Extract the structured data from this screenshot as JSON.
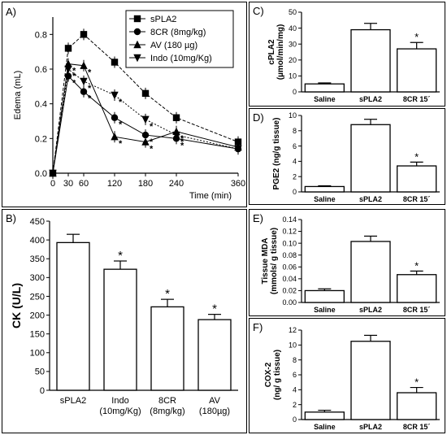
{
  "chart_data": [
    {
      "panel": "A)",
      "type": "line",
      "xlabel": "Time (min)",
      "ylabel": "Edema (mL)",
      "x": [
        0,
        30,
        60,
        120,
        180,
        240,
        360
      ],
      "xlim": [
        0,
        360
      ],
      "ylim": [
        0,
        0.9
      ],
      "xticks": [
        "0",
        "30",
        "60",
        "120",
        "180",
        "240",
        "360"
      ],
      "yticks": [
        "0.0",
        "0.2",
        "0.4",
        "0.6",
        "0.8"
      ],
      "series": [
        {
          "name": "sPLA2",
          "marker": "square",
          "values": [
            0.0,
            0.72,
            0.8,
            0.64,
            0.46,
            0.32,
            0.18
          ],
          "stars": [
            false,
            false,
            false,
            false,
            false,
            false,
            false
          ]
        },
        {
          "name": "8CR (8mg/kg)",
          "marker": "circle",
          "values": [
            0.0,
            0.56,
            0.47,
            0.32,
            0.22,
            0.2,
            0.14
          ],
          "stars": [
            false,
            true,
            true,
            true,
            true,
            true,
            false
          ]
        },
        {
          "name": "AV (180 µg)",
          "marker": "triangle",
          "values": [
            0.0,
            0.63,
            0.62,
            0.21,
            0.18,
            0.24,
            0.15
          ],
          "stars": [
            false,
            true,
            true,
            true,
            true,
            true,
            false
          ]
        },
        {
          "name": "Indo (10mg/Kg)",
          "marker": "invtriangle",
          "values": [
            0.0,
            0.6,
            0.53,
            0.45,
            0.31,
            0.22,
            0.14
          ],
          "stars": [
            false,
            true,
            true,
            true,
            true,
            true,
            false
          ]
        }
      ]
    },
    {
      "panel": "B)",
      "type": "bar",
      "ylabel": "CK (U/L)",
      "categories": [
        [
          "sPLA2"
        ],
        [
          "Indo",
          "(10mg/Kg)"
        ],
        [
          "8CR",
          "(8mg/kg)"
        ],
        [
          "AV",
          "(180µg)"
        ]
      ],
      "values": [
        393,
        322,
        222,
        188
      ],
      "errors": [
        22,
        22,
        20,
        14
      ],
      "stars": [
        false,
        true,
        true,
        true
      ],
      "ylim": [
        0,
        450
      ],
      "yticks": [
        "0",
        "50",
        "100",
        "150",
        "200",
        "250",
        "300",
        "350",
        "400",
        "450"
      ]
    },
    {
      "panel": "C)",
      "type": "bar",
      "ylabel": [
        "cPLA2",
        "(µmol/min/mg)"
      ],
      "categories": [
        "Saline",
        "sPLA2",
        "8CR 15´"
      ],
      "values": [
        5,
        39,
        27
      ],
      "errors": [
        0.6,
        4,
        4
      ],
      "stars": [
        false,
        false,
        true
      ],
      "ylim": [
        0,
        50
      ],
      "yticks": [
        "0",
        "10",
        "20",
        "30",
        "40",
        "50"
      ]
    },
    {
      "panel": "D)",
      "type": "bar",
      "ylabel": "PGE2 (ng/g tissue)",
      "categories": [
        "Saline",
        "sPLA2",
        "8CR 15´"
      ],
      "values": [
        0.7,
        8.8,
        3.4
      ],
      "errors": [
        0.1,
        0.7,
        0.5
      ],
      "stars": [
        false,
        false,
        true
      ],
      "ylim": [
        0,
        10
      ],
      "yticks": [
        "0",
        "2",
        "4",
        "6",
        "8",
        "10"
      ]
    },
    {
      "panel": "E)",
      "type": "bar",
      "ylabel": [
        "Tissue MDA",
        "(mmols/ g tissue)"
      ],
      "categories": [
        "Saline",
        "sPLA2",
        "8CR 15´"
      ],
      "values": [
        0.02,
        0.103,
        0.047
      ],
      "errors": [
        0.003,
        0.009,
        0.006
      ],
      "stars": [
        false,
        false,
        true
      ],
      "ylim": [
        0,
        0.14
      ],
      "yticks": [
        "0.00",
        "0.02",
        "0.04",
        "0.06",
        "0.08",
        "0.10",
        "0.12",
        "0.14"
      ]
    },
    {
      "panel": "F)",
      "type": "bar",
      "ylabel": [
        "COX-2",
        "(ng/ g tissue)"
      ],
      "categories": [
        "Saline",
        "sPLA2",
        "8CR 15´"
      ],
      "values": [
        1.0,
        10.5,
        3.6
      ],
      "errors": [
        0.25,
        0.8,
        0.7
      ],
      "stars": [
        false,
        false,
        true
      ],
      "ylim": [
        0,
        12
      ],
      "yticks": [
        "0",
        "2",
        "4",
        "6",
        "8",
        "10",
        "12"
      ]
    }
  ],
  "star_symbol": "*"
}
